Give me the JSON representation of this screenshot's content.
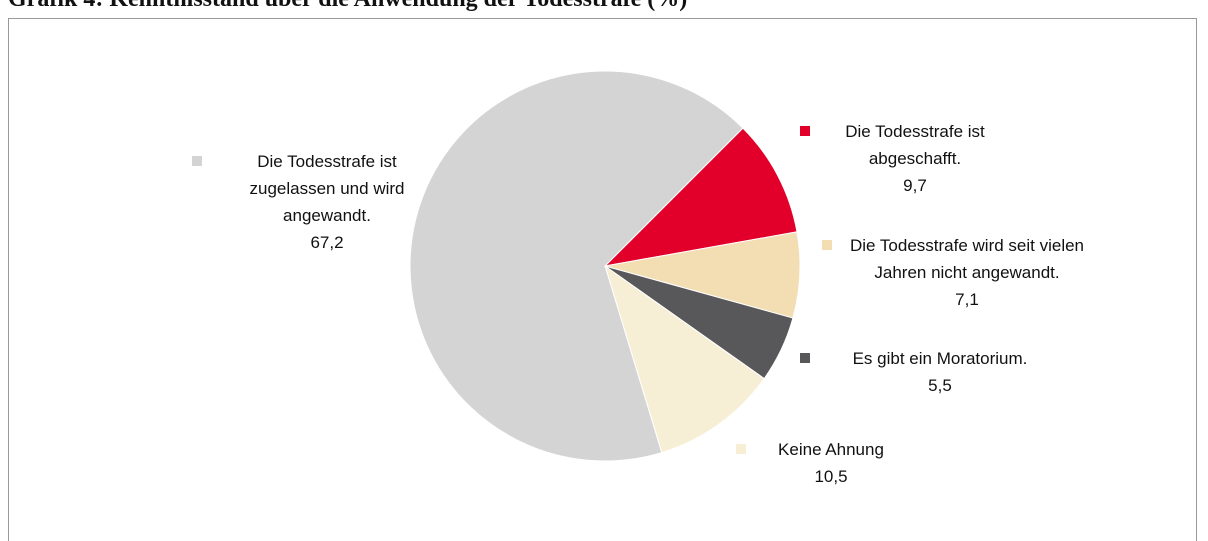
{
  "chart_data": {
    "type": "pie",
    "title": "Grafik 4: Kenntnisstand über die Anwendung der Todesstrafe (%)",
    "categories": [
      "Die Todesstrafe ist abgeschafft.",
      "Die Todesstrafe wird seit vielen Jahren nicht angewandt.",
      "Es gibt ein Moratorium.",
      "Keine Ahnung",
      "Die Todesstrafe ist zugelassen und wird angewandt."
    ],
    "values": [
      9.7,
      7.1,
      5.5,
      10.5,
      67.2
    ],
    "value_labels": [
      "9,7",
      "7,1",
      "5,5",
      "10,5",
      "67,2"
    ],
    "colors": [
      "#e2002a",
      "#f3ddb3",
      "#58585a",
      "#f7efd5",
      "#d4d4d4"
    ]
  }
}
